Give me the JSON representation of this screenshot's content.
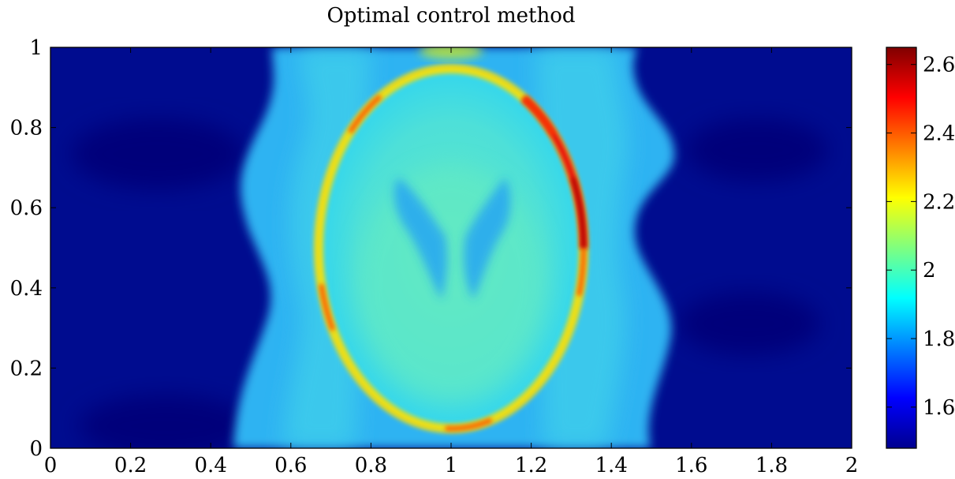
{
  "chart_data": {
    "type": "heatmap",
    "title": "Optimal control method",
    "xlabel": "",
    "ylabel": "",
    "xlim": [
      0,
      2
    ],
    "ylim": [
      0,
      1
    ],
    "x_ticks": [
      "0",
      "0.2",
      "0.4",
      "0.6",
      "0.8",
      "1",
      "1.2",
      "1.4",
      "1.6",
      "1.8",
      "2"
    ],
    "y_ticks": [
      "0",
      "0.2",
      "0.4",
      "0.6",
      "0.8",
      "1"
    ],
    "colorbar": {
      "range": [
        1.48,
        2.65
      ],
      "ticks": [
        "1.6",
        "1.8",
        "2",
        "2.2",
        "2.4",
        "2.6"
      ],
      "colormap": "jet"
    },
    "regions": [
      {
        "name": "background-left",
        "value": 1.5
      },
      {
        "name": "background-right",
        "value": 1.5
      },
      {
        "name": "central-band",
        "value": 1.85
      },
      {
        "name": "ellipse-interior",
        "value": 1.95
      },
      {
        "name": "ellipse-rim",
        "value": 2.55
      }
    ],
    "ellipse": {
      "center": [
        1.0,
        0.5
      ],
      "semi_axis_x": 0.33,
      "semi_axis_y": 0.45
    },
    "grid": false,
    "legend": "colorbar-right"
  }
}
